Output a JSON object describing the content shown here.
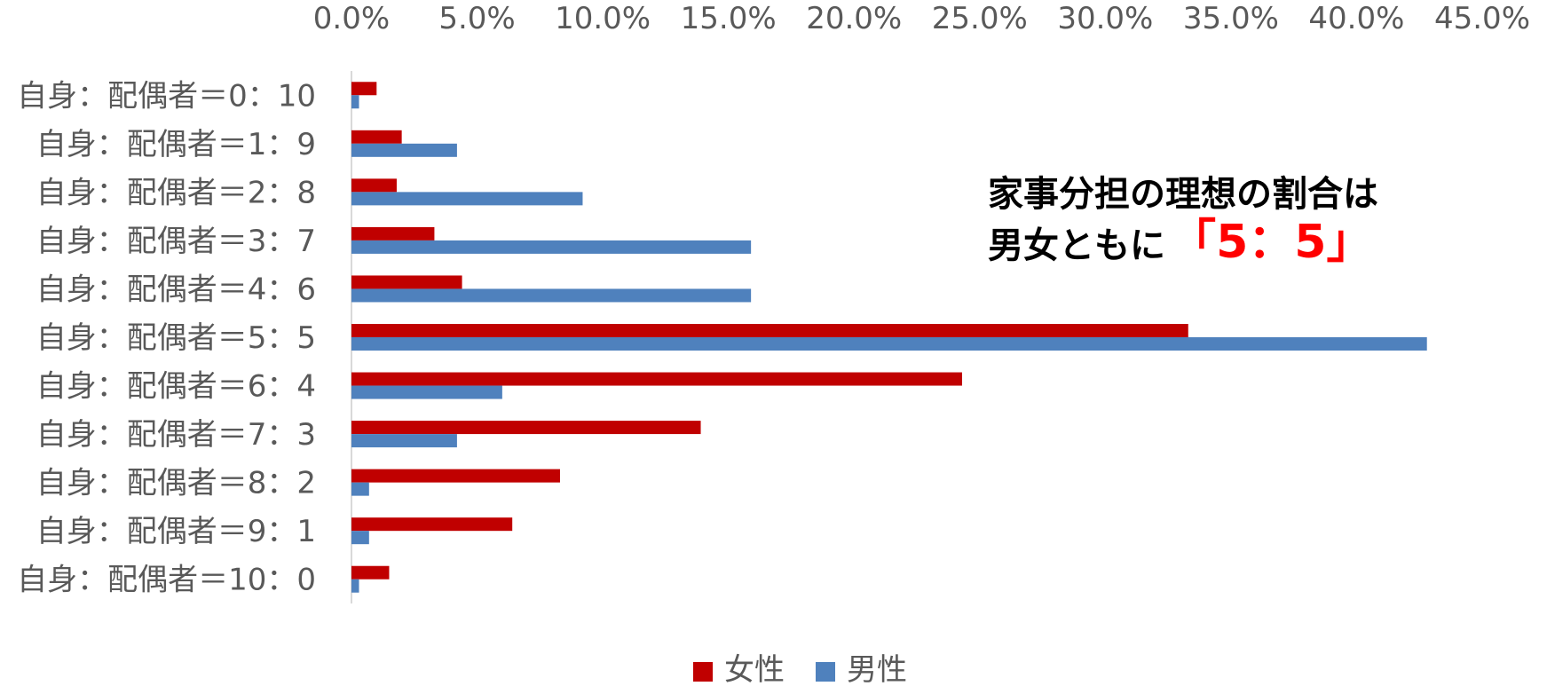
{
  "chart_data": {
    "type": "bar",
    "orientation": "horizontal",
    "categories": [
      "自身：配偶者＝0：10",
      "自身：配偶者＝1：9",
      "自身：配偶者＝2：8",
      "自身：配偶者＝3：7",
      "自身：配偶者＝4：6",
      "自身：配偶者＝5：5",
      "自身：配偶者＝6：4",
      "自身：配偶者＝7：3",
      "自身：配偶者＝8：2",
      "自身：配偶者＝9：1",
      "自身：配偶者＝10：0"
    ],
    "series": [
      {
        "name": "女性",
        "color": "#C00000",
        "values": [
          1.0,
          2.0,
          1.8,
          3.3,
          4.4,
          33.3,
          24.3,
          13.9,
          8.3,
          6.4,
          1.5
        ]
      },
      {
        "name": "男性",
        "color": "#4F81BD",
        "values": [
          0.3,
          4.2,
          9.2,
          15.9,
          15.9,
          42.8,
          6.0,
          4.2,
          0.7,
          0.7,
          0.3
        ]
      }
    ],
    "x_ticks": [
      "0.0%",
      "5.0%",
      "10.0%",
      "15.0%",
      "20.0%",
      "25.0%",
      "30.0%",
      "35.0%",
      "40.0%",
      "45.0%"
    ],
    "xlim": [
      0,
      45
    ],
    "x_axis_position": "top",
    "legend_position": "bottom",
    "grid": false,
    "title": "",
    "xlabel": "",
    "ylabel": ""
  },
  "annotation": {
    "line1": "家事分担の理想の割合は",
    "line2_prefix": "男女ともに",
    "line2_highlight": "「5：5」",
    "highlight_color": "#FF0000"
  }
}
